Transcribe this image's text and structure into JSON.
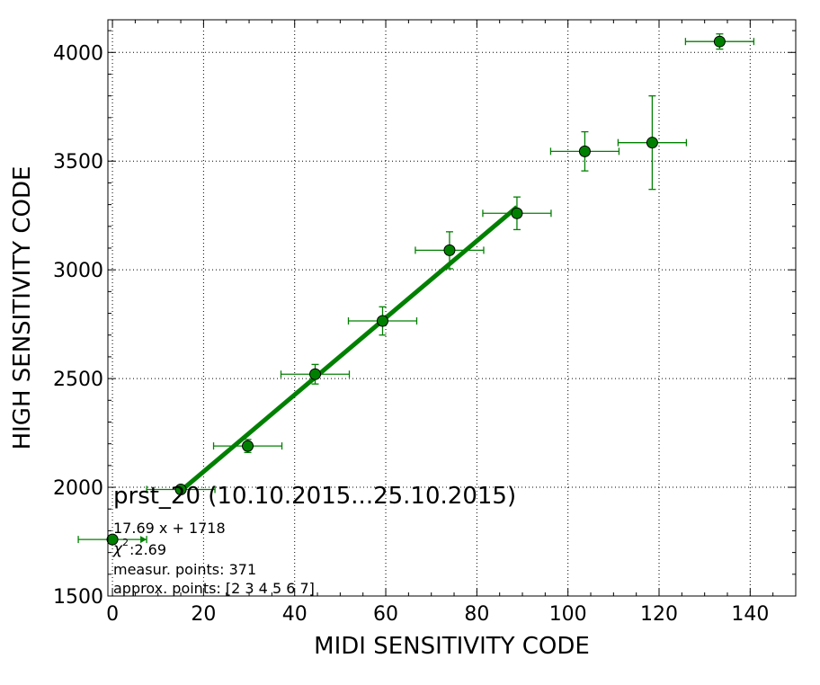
{
  "chart_data": {
    "type": "scatter",
    "xlabel": "MIDI SENSITIVITY CODE",
    "ylabel": "HIGH SENSITIVITY CODE",
    "xlim": [
      -1,
      150
    ],
    "ylim": [
      1500,
      4150
    ],
    "x_ticks": [
      0,
      20,
      40,
      60,
      80,
      100,
      120,
      140
    ],
    "y_ticks": [
      1500,
      2000,
      2500,
      3000,
      3500,
      4000
    ],
    "x_tick_labels": [
      "0",
      "20",
      "40",
      "60",
      "80",
      "100",
      "120",
      "140"
    ],
    "y_tick_labels": [
      "1500",
      "2000",
      "2500",
      "3000",
      "3500",
      "4000"
    ],
    "grid": true,
    "colors": {
      "marker": "#008000",
      "line": "#008000",
      "marker_edge": "#000000"
    },
    "series": [
      {
        "type": "errorbar",
        "points": [
          {
            "x": 0,
            "y": 1760,
            "xerr": 7.5,
            "yerr": 0
          },
          {
            "x": 15,
            "y": 1990,
            "xerr": 7.5,
            "yerr": 10
          },
          {
            "x": 29.7,
            "y": 2190,
            "xerr": 7.5,
            "yerr": 30
          },
          {
            "x": 44.5,
            "y": 2520,
            "xerr": 7.5,
            "yerr": 45
          },
          {
            "x": 59.3,
            "y": 2765,
            "xerr": 7.5,
            "yerr": 65
          },
          {
            "x": 74,
            "y": 3090,
            "xerr": 7.5,
            "yerr": 85
          },
          {
            "x": 88.8,
            "y": 3260,
            "xerr": 7.5,
            "yerr": 75
          },
          {
            "x": 103.7,
            "y": 3545,
            "xerr": 7.5,
            "yerr": 90
          },
          {
            "x": 118.5,
            "y": 3585,
            "xerr": 7.5,
            "yerr": 215
          },
          {
            "x": 133.3,
            "y": 4050,
            "xerr": 7.5,
            "yerr": 35
          }
        ]
      },
      {
        "type": "line",
        "slope": 17.69,
        "intercept": 1718,
        "x_range": [
          15,
          88.8
        ]
      }
    ],
    "annotations": {
      "title": "prst_20 (10.10.2015...25.10.2015)",
      "fit": "17.69 x + 1718",
      "chi_symbol": "χ",
      "chi_sup": "2",
      "chi_value": " :2.69",
      "measur": "measur. points: 371",
      "approx": "approx. points: [2 3 4 5 6 7]"
    }
  }
}
